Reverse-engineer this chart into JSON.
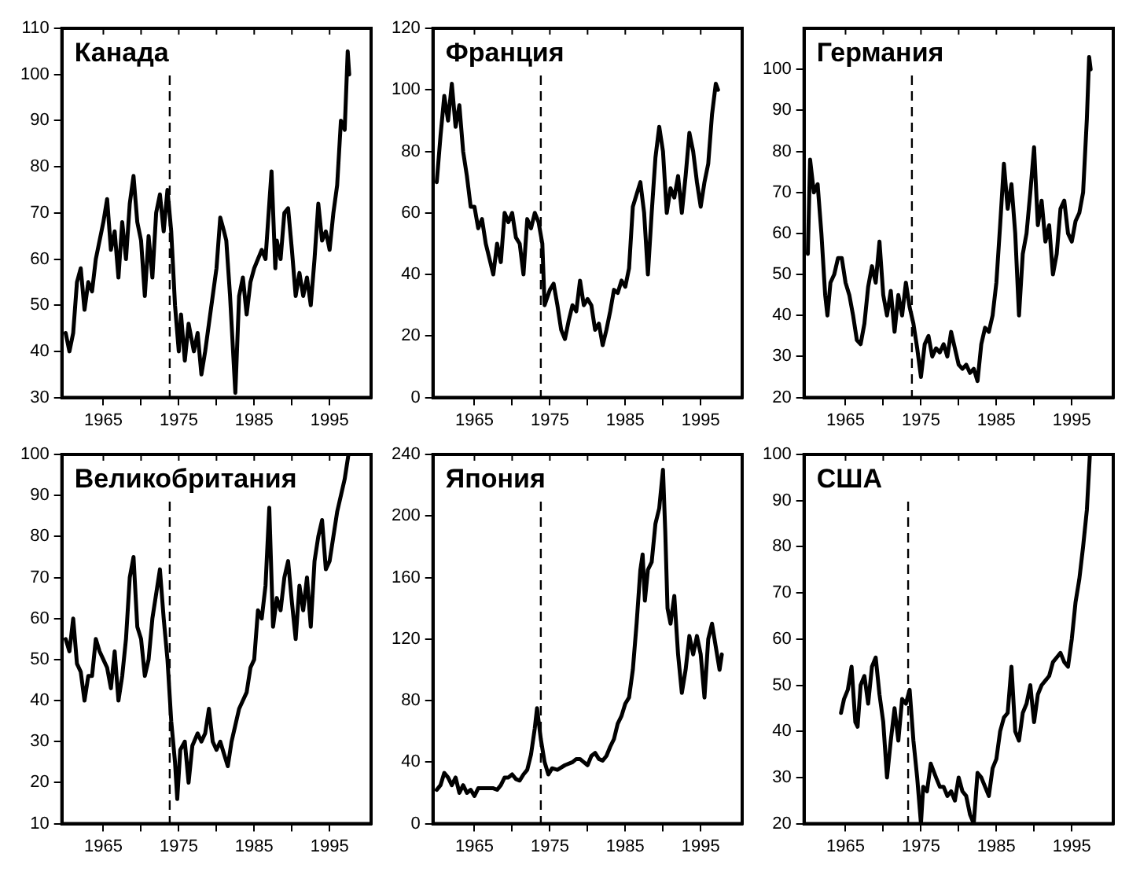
{
  "chart_data": [
    {
      "type": "line",
      "title": "Канада",
      "grid": false,
      "marker": "none",
      "xlim": [
        1959.5,
        2000.5
      ],
      "xticks": [
        1965,
        {
          "value": 1970,
          "label": null
        },
        1975,
        {
          "value": 1980,
          "label": null
        },
        1985,
        {
          "value": 1990,
          "label": null
        },
        1995
      ],
      "ylim": [
        30,
        110
      ],
      "yticks": [
        30,
        40,
        50,
        60,
        70,
        80,
        90,
        100,
        110
      ],
      "ref_lines": [
        {
          "axis": "x",
          "value": 1973.8,
          "line_style": "dashed"
        }
      ],
      "x": [
        1960,
        1960.5,
        1961,
        1961.5,
        1962,
        1962.5,
        1963,
        1963.5,
        1964,
        1965,
        1965.5,
        1966,
        1966.5,
        1967,
        1967.5,
        1968,
        1968.5,
        1969,
        1969.5,
        1970,
        1970.5,
        1971,
        1971.5,
        1972,
        1972.5,
        1973,
        1973.5,
        1974,
        1974.5,
        1975,
        1975.3,
        1975.8,
        1976.3,
        1977,
        1977.5,
        1978,
        1978.5,
        1979,
        1979.5,
        1980,
        1980.5,
        1981,
        1981.3,
        1981.8,
        1982.2,
        1982.5,
        1983,
        1983.5,
        1984,
        1984.5,
        1985,
        1986,
        1986.5,
        1987,
        1987.3,
        1987.8,
        1988,
        1988.5,
        1989,
        1989.5,
        1990,
        1990.5,
        1991,
        1991.5,
        1992,
        1992.5,
        1993,
        1993.5,
        1994,
        1994.5,
        1995,
        1995.5,
        1996,
        1996.5,
        1997,
        1997.4,
        1997.6
      ],
      "series": [
        {
          "color": "#000000",
          "values": [
            44,
            40,
            44,
            55,
            58,
            49,
            55,
            53,
            60,
            68,
            73,
            62,
            66,
            56,
            68,
            60,
            72,
            78,
            68,
            64,
            52,
            65,
            56,
            70,
            74,
            66,
            75,
            66,
            50,
            40,
            48,
            38,
            46,
            40,
            44,
            35,
            40,
            46,
            52,
            58,
            69,
            66,
            64,
            52,
            40,
            31,
            52,
            56,
            48,
            55,
            58,
            62,
            60,
            72,
            79,
            58,
            64,
            60,
            70,
            71,
            62,
            52,
            57,
            52,
            56,
            50,
            60,
            72,
            64,
            66,
            62,
            70,
            76,
            90,
            88,
            105,
            100
          ]
        }
      ]
    },
    {
      "type": "line",
      "title": "Франция",
      "grid": false,
      "marker": "none",
      "xlim": [
        1959.5,
        2000.5
      ],
      "xticks": [
        1965,
        {
          "value": 1970,
          "label": null
        },
        1975,
        {
          "value": 1980,
          "label": null
        },
        1985,
        {
          "value": 1990,
          "label": null
        },
        1995
      ],
      "ylim": [
        0,
        120
      ],
      "yticks": [
        0,
        20,
        40,
        60,
        80,
        100,
        120
      ],
      "ref_lines": [
        {
          "axis": "x",
          "value": 1973.8,
          "line_style": "dashed"
        }
      ],
      "x": [
        1960,
        1960.5,
        1961,
        1961.5,
        1962,
        1962.5,
        1963,
        1963.5,
        1964,
        1964.5,
        1965,
        1965.5,
        1966,
        1966.5,
        1967,
        1967.5,
        1968,
        1968.5,
        1969,
        1969.5,
        1970,
        1970.5,
        1971,
        1971.5,
        1972,
        1972.5,
        1973,
        1973.5,
        1974,
        1974.3,
        1975,
        1975.5,
        1976,
        1976.5,
        1977,
        1977.5,
        1978,
        1978.5,
        1979,
        1979.5,
        1980,
        1980.5,
        1981,
        1981.5,
        1982,
        1982.5,
        1983,
        1983.5,
        1984,
        1984.5,
        1985,
        1985.5,
        1986,
        1986.5,
        1987,
        1987.5,
        1988,
        1988.5,
        1989,
        1989.5,
        1990,
        1990.5,
        1991,
        1991.5,
        1992,
        1992.5,
        1993,
        1993.5,
        1994,
        1994.5,
        1995,
        1995.5,
        1996,
        1996.5,
        1997,
        1997.3
      ],
      "series": [
        {
          "color": "#000000",
          "values": [
            70,
            85,
            98,
            90,
            102,
            88,
            95,
            80,
            72,
            62,
            62,
            55,
            58,
            50,
            45,
            40,
            50,
            44,
            60,
            57,
            60,
            52,
            50,
            40,
            58,
            55,
            60,
            57,
            50,
            30,
            35,
            37,
            30,
            22,
            19,
            25,
            30,
            28,
            38,
            30,
            32,
            30,
            22,
            24,
            17,
            22,
            28,
            35,
            34,
            38,
            36,
            42,
            62,
            66,
            70,
            60,
            40,
            60,
            78,
            88,
            80,
            60,
            68,
            65,
            72,
            60,
            72,
            86,
            80,
            70,
            62,
            70,
            76,
            92,
            102,
            100
          ]
        }
      ]
    },
    {
      "type": "line",
      "title": "Германия",
      "grid": false,
      "marker": "none",
      "xlim": [
        1959.5,
        2000.5
      ],
      "xticks": [
        1965,
        {
          "value": 1970,
          "label": null
        },
        1975,
        {
          "value": 1980,
          "label": null
        },
        1985,
        {
          "value": 1990,
          "label": null
        },
        1995
      ],
      "ylim": [
        20,
        110
      ],
      "yticks": [
        20,
        30,
        40,
        50,
        60,
        70,
        80,
        90,
        100
      ],
      "ref_lines": [
        {
          "axis": "x",
          "value": 1973.8,
          "line_style": "dashed"
        }
      ],
      "x": [
        1960,
        1960.3,
        1960.8,
        1961.3,
        1961.8,
        1962.3,
        1962.6,
        1963,
        1963.5,
        1964,
        1964.5,
        1965,
        1965.5,
        1966,
        1966.5,
        1967,
        1967.5,
        1968,
        1968.5,
        1969,
        1969.5,
        1970,
        1970.5,
        1971,
        1971.5,
        1972,
        1972.5,
        1973,
        1973.5,
        1974,
        1974.5,
        1975,
        1975.5,
        1976,
        1976.5,
        1977,
        1977.5,
        1978,
        1978.5,
        1979,
        1979.5,
        1980,
        1980.5,
        1981,
        1981.5,
        1982,
        1982.5,
        1983,
        1983.5,
        1984,
        1984.5,
        1985,
        1985.5,
        1986,
        1986.5,
        1987,
        1987.5,
        1988,
        1988.5,
        1989,
        1989.5,
        1990,
        1990.5,
        1991,
        1991.5,
        1992,
        1992.5,
        1993,
        1993.5,
        1994,
        1994.5,
        1995,
        1995.5,
        1996,
        1996.5,
        1997,
        1997.3,
        1997.5
      ],
      "series": [
        {
          "color": "#000000",
          "values": [
            55,
            78,
            70,
            72,
            60,
            45,
            40,
            48,
            50,
            54,
            54,
            48,
            45,
            40,
            34,
            33,
            38,
            47,
            52,
            48,
            58,
            45,
            40,
            46,
            36,
            45,
            40,
            48,
            42,
            38,
            32,
            25,
            33,
            35,
            30,
            32,
            31,
            33,
            30,
            36,
            32,
            28,
            27,
            28,
            26,
            27,
            24,
            33,
            37,
            36,
            40,
            48,
            62,
            77,
            66,
            72,
            60,
            40,
            55,
            60,
            70,
            81,
            62,
            68,
            58,
            62,
            50,
            55,
            66,
            68,
            60,
            58,
            63,
            65,
            70,
            88,
            103,
            100
          ]
        }
      ]
    },
    {
      "type": "line",
      "title": "Великобритания",
      "grid": false,
      "marker": "none",
      "xlim": [
        1959.5,
        2000.5
      ],
      "xticks": [
        1965,
        {
          "value": 1970,
          "label": null
        },
        1975,
        {
          "value": 1980,
          "label": null
        },
        1985,
        {
          "value": 1990,
          "label": null
        },
        1995
      ],
      "ylim": [
        10,
        100
      ],
      "yticks": [
        10,
        20,
        30,
        40,
        50,
        60,
        70,
        80,
        90,
        100
      ],
      "ref_lines": [
        {
          "axis": "x",
          "value": 1973.8,
          "line_style": "dashed"
        }
      ],
      "x": [
        1960,
        1960.5,
        1961,
        1961.5,
        1962,
        1962.5,
        1963,
        1963.5,
        1964,
        1964.5,
        1965,
        1965.5,
        1966,
        1966.5,
        1967,
        1967.5,
        1968,
        1968.5,
        1969,
        1969.5,
        1970,
        1970.5,
        1971,
        1971.5,
        1972,
        1972.5,
        1973,
        1973.5,
        1974,
        1974.5,
        1974.8,
        1975.2,
        1975.8,
        1976.3,
        1976.8,
        1977.5,
        1978,
        1978.5,
        1979,
        1979.5,
        1980,
        1980.5,
        1981,
        1981.5,
        1982,
        1982.5,
        1983,
        1983.5,
        1984,
        1984.5,
        1985,
        1985.5,
        1986,
        1986.5,
        1987,
        1987.5,
        1988,
        1988.5,
        1989,
        1989.5,
        1990,
        1990.5,
        1991,
        1991.5,
        1992,
        1992.5,
        1993,
        1993.5,
        1994,
        1994.5,
        1995,
        1995.5,
        1996,
        1996.5,
        1997,
        1997.5
      ],
      "series": [
        {
          "color": "#000000",
          "values": [
            55,
            52,
            60,
            49,
            47,
            40,
            46,
            46,
            55,
            52,
            50,
            48,
            43,
            52,
            40,
            46,
            55,
            70,
            75,
            58,
            55,
            46,
            50,
            60,
            66,
            72,
            60,
            50,
            35,
            25,
            16,
            28,
            30,
            20,
            29,
            32,
            30,
            32,
            38,
            30,
            28,
            30,
            27,
            24,
            30,
            34,
            38,
            40,
            42,
            48,
            50,
            62,
            60,
            68,
            87,
            58,
            65,
            62,
            70,
            74,
            64,
            55,
            68,
            62,
            70,
            58,
            74,
            80,
            84,
            72,
            74,
            80,
            86,
            90,
            94,
            100
          ]
        }
      ]
    },
    {
      "type": "line",
      "title": "Япония",
      "grid": false,
      "marker": "none",
      "xlim": [
        1959.5,
        2000.5
      ],
      "xticks": [
        1965,
        {
          "value": 1970,
          "label": null
        },
        1975,
        {
          "value": 1980,
          "label": null
        },
        1985,
        {
          "value": 1990,
          "label": null
        },
        1995
      ],
      "ylim": [
        0,
        240
      ],
      "yticks": [
        0,
        40,
        80,
        120,
        160,
        200,
        240
      ],
      "ref_lines": [
        {
          "axis": "x",
          "value": 1973.8,
          "line_style": "dashed"
        }
      ],
      "x": [
        1960,
        1960.5,
        1961,
        1961.5,
        1962,
        1962.5,
        1963,
        1963.5,
        1964,
        1964.5,
        1965,
        1965.5,
        1966,
        1967,
        1967.5,
        1968,
        1968.5,
        1969,
        1969.5,
        1970,
        1970.5,
        1971,
        1971.5,
        1972,
        1972.5,
        1973,
        1973.3,
        1973.8,
        1974.3,
        1974.8,
        1975.3,
        1976,
        1977,
        1978,
        1978.5,
        1979,
        1979.5,
        1980,
        1980.5,
        1981,
        1981.5,
        1982,
        1982.5,
        1983,
        1983.5,
        1984,
        1984.5,
        1985,
        1985.5,
        1986,
        1986.5,
        1987,
        1987.3,
        1987.6,
        1988,
        1988.5,
        1989,
        1989.5,
        1990,
        1990.3,
        1990.6,
        1991,
        1991.5,
        1992,
        1992.5,
        1993,
        1993.5,
        1994,
        1994.5,
        1995,
        1995.5,
        1996,
        1996.5,
        1997,
        1997.5,
        1997.8
      ],
      "series": [
        {
          "color": "#000000",
          "values": [
            22,
            25,
            33,
            30,
            25,
            30,
            20,
            25,
            20,
            22,
            18,
            23,
            23,
            23,
            23,
            22,
            25,
            30,
            30,
            32,
            29,
            28,
            32,
            35,
            45,
            62,
            75,
            55,
            40,
            32,
            36,
            35,
            38,
            40,
            42,
            42,
            40,
            38,
            44,
            46,
            42,
            41,
            44,
            50,
            55,
            65,
            70,
            78,
            82,
            100,
            130,
            165,
            175,
            145,
            165,
            170,
            195,
            205,
            230,
            190,
            140,
            130,
            148,
            110,
            85,
            100,
            122,
            110,
            122,
            110,
            82,
            120,
            130,
            115,
            100,
            110
          ]
        }
      ]
    },
    {
      "type": "line",
      "title": "США",
      "grid": false,
      "marker": "none",
      "xlim": [
        1959.5,
        2000.5
      ],
      "xticks": [
        1965,
        {
          "value": 1970,
          "label": null
        },
        1975,
        {
          "value": 1980,
          "label": null
        },
        1985,
        {
          "value": 1990,
          "label": null
        },
        1995
      ],
      "ylim": [
        20,
        100
      ],
      "yticks": [
        20,
        30,
        40,
        50,
        60,
        70,
        80,
        90,
        100
      ],
      "ref_lines": [
        {
          "axis": "x",
          "value": 1973.3,
          "line_style": "dashed"
        }
      ],
      "x": [
        1964.4,
        1964.8,
        1965.3,
        1965.8,
        1966.3,
        1966.6,
        1967,
        1967.5,
        1968,
        1968.5,
        1969,
        1969.5,
        1970,
        1970.5,
        1971,
        1971.5,
        1972,
        1972.5,
        1973,
        1973.5,
        1974,
        1974.5,
        1975,
        1975.3,
        1975.8,
        1976.3,
        1977,
        1977.5,
        1978,
        1978.5,
        1979,
        1979.5,
        1980,
        1980.5,
        1981,
        1981.5,
        1982,
        1982.5,
        1983,
        1983.5,
        1984,
        1984.5,
        1985,
        1985.5,
        1986,
        1986.5,
        1987,
        1987.5,
        1988,
        1988.5,
        1989,
        1989.5,
        1990,
        1990.5,
        1991,
        1991.5,
        1992,
        1992.5,
        1993,
        1993.5,
        1994,
        1994.5,
        1995,
        1995.5,
        1996,
        1996.5,
        1997,
        1997.4
      ],
      "series": [
        {
          "color": "#000000",
          "values": [
            44,
            47,
            49,
            54,
            42,
            41,
            50,
            52,
            46,
            54,
            56,
            48,
            42,
            30,
            38,
            45,
            38,
            47,
            46,
            49,
            38,
            30,
            20,
            28,
            27,
            33,
            30,
            28,
            28,
            26,
            27,
            25,
            30,
            27,
            26,
            22,
            20,
            31,
            30,
            28,
            26,
            32,
            34,
            40,
            43,
            44,
            54,
            40,
            38,
            44,
            46,
            50,
            42,
            48,
            50,
            51,
            52,
            55,
            56,
            57,
            55,
            54,
            60,
            68,
            73,
            80,
            88,
            100
          ]
        }
      ]
    }
  ]
}
